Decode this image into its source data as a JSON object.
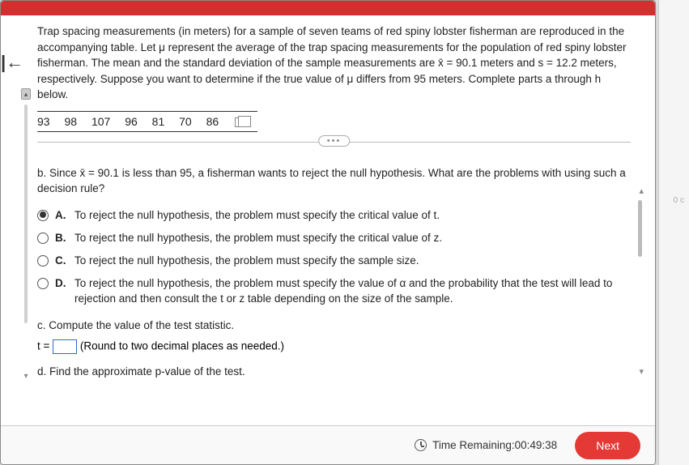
{
  "intro": "Trap spacing measurements (in meters) for a sample of seven teams of red spiny lobster fisherman are reproduced in the accompanying table. Let μ represent the average of the trap spacing measurements for the population of red spiny lobster fisherman. The mean and the standard deviation of the sample measurements are x̄ = 90.1 meters and s = 12.2 meters, respectively. Suppose you want to determine if the true value of μ differs from 95 meters. Complete parts a through h below.",
  "data_values": [
    "93",
    "98",
    "107",
    "96",
    "81",
    "70",
    "86"
  ],
  "question_b": "b. Since x̄ = 90.1 is less than 95, a fisherman wants to reject the null hypothesis. What are the problems with using such a decision rule?",
  "options": [
    {
      "letter": "A.",
      "text": "To reject the null hypothesis, the problem must specify the critical value of t.",
      "selected": true
    },
    {
      "letter": "B.",
      "text": "To reject the null hypothesis, the problem must specify the critical value of z.",
      "selected": false
    },
    {
      "letter": "C.",
      "text": "To reject the null hypothesis, the problem must specify the sample size.",
      "selected": false
    },
    {
      "letter": "D.",
      "text": "To reject the null hypothesis, the problem must specify the value of α and the probability that the test will lead to rejection and then consult the t or z table depending on the size of the sample.",
      "selected": false
    }
  ],
  "question_c": "c. Compute the value of the test statistic.",
  "t_prefix": "t = ",
  "t_suffix": " (Round to two decimal places as needed.)",
  "question_d": "d. Find the approximate p-value of the test.",
  "timer_label": "Time Remaining: ",
  "timer_value": "00:49:38",
  "next_label": "Next",
  "dots": "•••",
  "side_note": "0 c",
  "colors": {
    "red_bar": "#d32f2f",
    "next_btn": "#e53935",
    "input_border": "#3366cc"
  }
}
